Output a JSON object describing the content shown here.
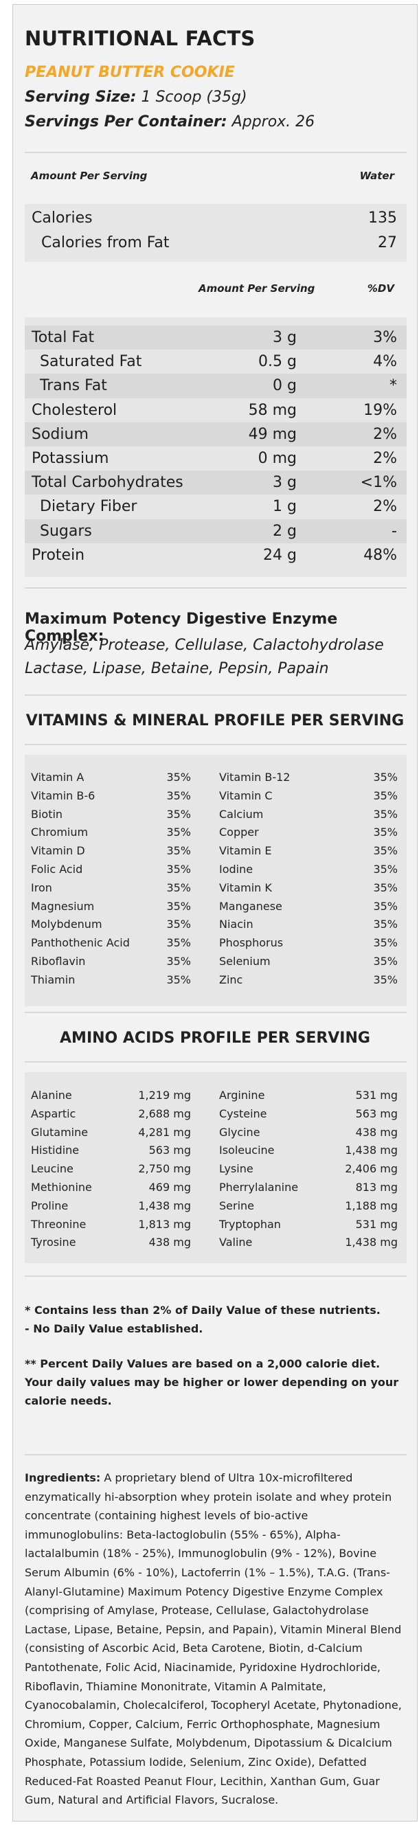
{
  "header": {
    "title": "NUTRITIONAL FACTS",
    "flavor": "PEANUT BUTTER COOKIE",
    "serving_size_label": "Serving Size:",
    "serving_size_value": " 1 Scoop (35g)",
    "servings_label": "Servings Per Container:",
    "servings_value": " Approx. 26"
  },
  "calorie_section": {
    "amount_header": "Amount Per Serving",
    "water_header": "Water",
    "calories_label": "Calories",
    "calories_value": "135",
    "fat_cal_label": "Calories from Fat",
    "fat_cal_value": "27"
  },
  "nutrient_headers": {
    "amount": "Amount Per Serving",
    "dv": "%DV"
  },
  "nutrients": [
    {
      "name": "Total Fat",
      "amount": "3 g",
      "dv": "3%"
    },
    {
      "name": "Saturated Fat",
      "amount": "0.5 g",
      "dv": "4%"
    },
    {
      "name": "Trans Fat",
      "amount": "0 g",
      "dv": "*"
    },
    {
      "name": "Cholesterol",
      "amount": "58 mg",
      "dv": "19%"
    },
    {
      "name": "Sodium",
      "amount": "49 mg",
      "dv": "2%"
    },
    {
      "name": "Potassium",
      "amount": "0 mg",
      "dv": "2%"
    },
    {
      "name": "Total Carbohydrates",
      "amount": "3 g",
      "dv": "<1%"
    },
    {
      "name": "Dietary Fiber",
      "amount": "1 g",
      "dv": "2%"
    },
    {
      "name": "Sugars",
      "amount": "2 g",
      "dv": "-"
    },
    {
      "name": "Protein",
      "amount": "24 g",
      "dv": "48%"
    }
  ],
  "enzymes": {
    "title": "Maximum Potency Digestive Enzyme Complex:",
    "list": "Amylase, Protease, Cellulase, Calactohydrolase Lactase, Lipase, Betaine, Pepsin, Papain"
  },
  "vitamins": {
    "title": "VITAMINS & MINERAL PROFILE PER SERVING",
    "left": [
      {
        "name": "Vitamin A",
        "value": "35%"
      },
      {
        "name": "Vitamin B-6",
        "value": "35%"
      },
      {
        "name": "Biotin",
        "value": "35%"
      },
      {
        "name": "Chromium",
        "value": "35%"
      },
      {
        "name": "Vitamin D",
        "value": "35%"
      },
      {
        "name": "Folic Acid",
        "value": "35%"
      },
      {
        "name": "Iron",
        "value": "35%"
      },
      {
        "name": "Magnesium",
        "value": "35%"
      },
      {
        "name": "Molybdenum",
        "value": "35%"
      },
      {
        "name": "Panthothenic Acid",
        "value": "35%"
      },
      {
        "name": "Riboflavin",
        "value": "35%"
      },
      {
        "name": "Thiamin",
        "value": "35%"
      }
    ],
    "right": [
      {
        "name": "Vitamin B-12",
        "value": "35%"
      },
      {
        "name": "Vitamin C",
        "value": "35%"
      },
      {
        "name": "Calcium",
        "value": "35%"
      },
      {
        "name": "Copper",
        "value": "35%"
      },
      {
        "name": "Vitamin E",
        "value": "35%"
      },
      {
        "name": "Iodine",
        "value": "35%"
      },
      {
        "name": "Vitamin K",
        "value": "35%"
      },
      {
        "name": "Manganese",
        "value": "35%"
      },
      {
        "name": "Niacin",
        "value": "35%"
      },
      {
        "name": "Phosphorus",
        "value": "35%"
      },
      {
        "name": "Selenium",
        "value": "35%"
      },
      {
        "name": "Zinc",
        "value": "35%"
      }
    ]
  },
  "amino": {
    "title": "AMINO ACIDS PROFILE PER SERVING",
    "left": [
      {
        "name": "Alanine",
        "value": "1,219 mg"
      },
      {
        "name": "Aspartic",
        "value": "2,688 mg"
      },
      {
        "name": "Glutamine",
        "value": "4,281 mg"
      },
      {
        "name": "Histidine",
        "value": "563 mg"
      },
      {
        "name": "Leucine",
        "value": "2,750 mg"
      },
      {
        "name": "Methionine",
        "value": "469 mg"
      },
      {
        "name": "Proline",
        "value": "1,438 mg"
      },
      {
        "name": "Threonine",
        "value": "1,813 mg"
      },
      {
        "name": "Tyrosine",
        "value": "438 mg"
      }
    ],
    "right": [
      {
        "name": "Arginine",
        "value": "531 mg"
      },
      {
        "name": "Cysteine",
        "value": "563 mg"
      },
      {
        "name": "Glycine",
        "value": "438 mg"
      },
      {
        "name": "Isoleucine",
        "value": "1,438 mg"
      },
      {
        "name": "Lysine",
        "value": "2,406 mg"
      },
      {
        "name": "Pherrylalanine",
        "value": "813 mg"
      },
      {
        "name": "Serine",
        "value": "1,188 mg"
      },
      {
        "name": "Tryptophan",
        "value": "531 mg"
      },
      {
        "name": "Valine",
        "value": "1,438 mg"
      }
    ]
  },
  "footnotes": {
    "line1": "* Contains less than 2% of Daily Value of these nutrients.",
    "line2": "- No Daily Value established.",
    "line3": "** Percent Daily Values are based on a 2,000 calorie diet. Your daily values may be higher or lower depending on your calorie needs."
  },
  "ingredients": {
    "label": "Ingredients:",
    "text": " A proprietary blend of Ultra 10x-microfiltered enzymatically hi-absorption whey protein isolate and whey protein concentrate (containing highest levels of bio-active immunoglobulins: Beta-lactoglobulin (55% - 65%), Alpha-lactalalbumin (18% - 25%), Immunoglobulin (9% - 12%), Bovine Serum Albumin (6% - 10%), Lactoferrin (1% – 1.5%), T.A.G. (Trans-Alanyl-Glutamine) Maximum Potency Digestive Enzyme Complex (comprising of Amylase, Protease, Cellulase, Galactohydrolase Lactase, Lipase, Betaine, Pepsin, and Papain), Vitamin Mineral Blend (consisting of Ascorbic Acid, Beta Carotene, Biotin, d-Calcium Pantothenate, Folic Acid, Niacinamide, Pyridoxine Hydrochloride, Riboflavin, Thiamine Mononitrate, Vitamin A Palmitate, Cyanocobalamin, Cholecalciferol, Tocopheryl Acetate, Phytonadione, Chromium, Copper, Calcium, Ferric Orthophosphate, Magnesium Oxide, Manganese Sulfate, Molybdenum, Dipotassium & Dicalcium Phosphate, Potassium Iodide, Selenium, Zinc Oxide), Defatted Reduced-Fat Roasted Peanut Flour, Lecithin, Xanthan Gum, Guar Gum, Natural and Artificial Flavors, Sucralose."
  }
}
